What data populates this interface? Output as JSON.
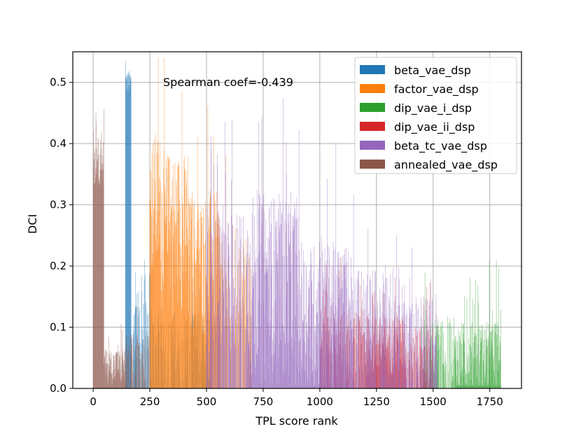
{
  "chart_data": {
    "type": "bar",
    "title": "",
    "annotation": "Spearman coef=-0.439",
    "xlabel": "TPL score rank",
    "ylabel": "DCI",
    "xlim": [
      -90,
      1890
    ],
    "ylim": [
      0,
      0.55
    ],
    "xticks": [
      0,
      250,
      500,
      750,
      1000,
      1250,
      1500,
      1750
    ],
    "yticks": [
      0.0,
      0.1,
      0.2,
      0.3,
      0.4,
      0.5
    ],
    "xtick_labels": [
      "0",
      "250",
      "500",
      "750",
      "1000",
      "1250",
      "1500",
      "1750"
    ],
    "ytick_labels": [
      "0.0",
      "0.1",
      "0.2",
      "0.3",
      "0.4",
      "0.5"
    ],
    "grid": true,
    "legend_position": "top-right",
    "bar_width": 1,
    "series": [
      {
        "name": "beta_vae_dsp",
        "color": "#1f77b4",
        "segments": [
          {
            "start": 142,
            "end": 168,
            "level": 0.5,
            "spread": 0.02
          },
          {
            "start": 168,
            "end": 260,
            "level": 0.1,
            "spread": 0.09,
            "sparse": true
          },
          {
            "start": 260,
            "end": 520,
            "level": 0.07,
            "spread": 0.06,
            "sparse": true
          }
        ]
      },
      {
        "name": "factor_vae_dsp",
        "color": "#ff7f0e",
        "segments": [
          {
            "start": 250,
            "end": 300,
            "level": 0.3,
            "spread": 0.12
          },
          {
            "start": 300,
            "end": 420,
            "level": 0.25,
            "spread": 0.14
          },
          {
            "start": 420,
            "end": 560,
            "level": 0.2,
            "spread": 0.12
          },
          {
            "start": 560,
            "end": 700,
            "level": 0.15,
            "spread": 0.1,
            "sparse": true
          }
        ]
      },
      {
        "name": "dip_vae_i_dsp",
        "color": "#2ca02c",
        "segments": [
          {
            "start": 1450,
            "end": 1600,
            "level": 0.06,
            "spread": 0.06,
            "sparse": true
          },
          {
            "start": 1600,
            "end": 1800,
            "level": 0.04,
            "spread": 0.07
          }
        ]
      },
      {
        "name": "dip_vae_ii_dsp",
        "color": "#d62728",
        "segments": [
          {
            "start": 1000,
            "end": 1200,
            "level": 0.07,
            "spread": 0.06,
            "sparse": true
          },
          {
            "start": 1200,
            "end": 1380,
            "level": 0.07,
            "spread": 0.05
          },
          {
            "start": 1380,
            "end": 1500,
            "level": 0.05,
            "spread": 0.05,
            "sparse": true
          }
        ]
      },
      {
        "name": "beta_tc_vae_dsp",
        "color": "#9467bd",
        "segments": [
          {
            "start": 500,
            "end": 680,
            "level": 0.18,
            "spread": 0.12,
            "sparse": true
          },
          {
            "start": 680,
            "end": 900,
            "level": 0.16,
            "spread": 0.16
          },
          {
            "start": 900,
            "end": 1150,
            "level": 0.11,
            "spread": 0.13
          },
          {
            "start": 1150,
            "end": 1400,
            "level": 0.1,
            "spread": 0.1,
            "sparse": true
          },
          {
            "start": 1400,
            "end": 1520,
            "level": 0.08,
            "spread": 0.07,
            "sparse": true
          }
        ]
      },
      {
        "name": "annealed_vae_dsp",
        "color": "#8c564b",
        "segments": [
          {
            "start": 0,
            "end": 48,
            "level": 0.37,
            "spread": 0.04
          },
          {
            "start": 48,
            "end": 142,
            "level": 0.035,
            "spread": 0.03
          },
          {
            "start": 142,
            "end": 250,
            "level": 0.05,
            "spread": 0.04,
            "sparse": true
          }
        ]
      }
    ]
  }
}
